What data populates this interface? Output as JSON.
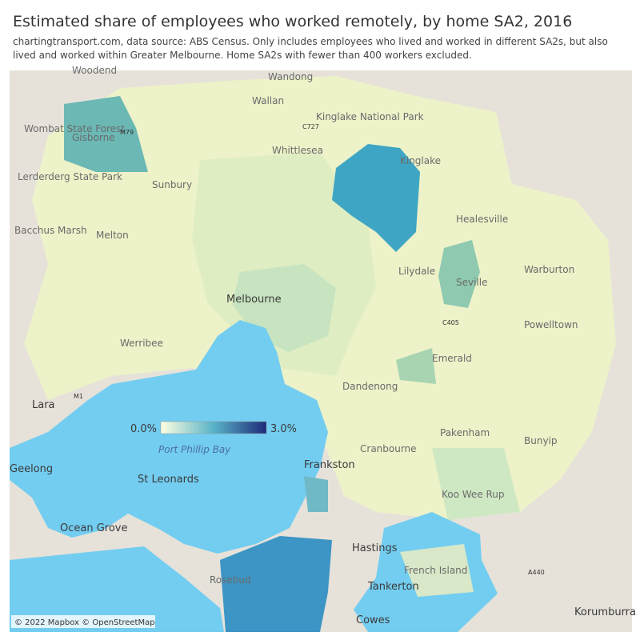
{
  "header": {
    "title": "Estimated share of employees who worked remotely, by home SA2, 2016",
    "subtitle": "chartingtransport.com, data source: ABS Census. Only includes employees who lived and worked in different SA2s, but also lived and worked within Greater Melbourne. Home SA2s with fewer than 400 workers excluded."
  },
  "legend": {
    "min_label": "0.0%",
    "max_label": "3.0%"
  },
  "places": [
    "Woodend",
    "Wandong",
    "Wallan",
    "Kinglake National Park",
    "Gisborne",
    "Whittlesea",
    "Kinglake",
    "Wombat State Forest",
    "Lerderderg State Park",
    "Sunbury",
    "Healesville",
    "Bacchus Marsh",
    "Melton",
    "Lilydale",
    "Warburton",
    "Seville",
    "Melbourne",
    "Powelltown",
    "Werribee",
    "Emerald",
    "Dandenong",
    "Lara",
    "Pakenham",
    "Bunyip",
    "Port Phillip Bay",
    "Frankston",
    "Geelong",
    "St Leonards",
    "Cranbourne",
    "Koo Wee Rup",
    "Ocean Grove",
    "Hastings",
    "French Island",
    "Rosebud",
    "Tankerton",
    "Cowes",
    "Korumburra",
    "M1",
    "M79",
    "C727",
    "A440",
    "C405"
  ],
  "attribution": "© 2022 Mapbox © OpenStreetMap"
}
